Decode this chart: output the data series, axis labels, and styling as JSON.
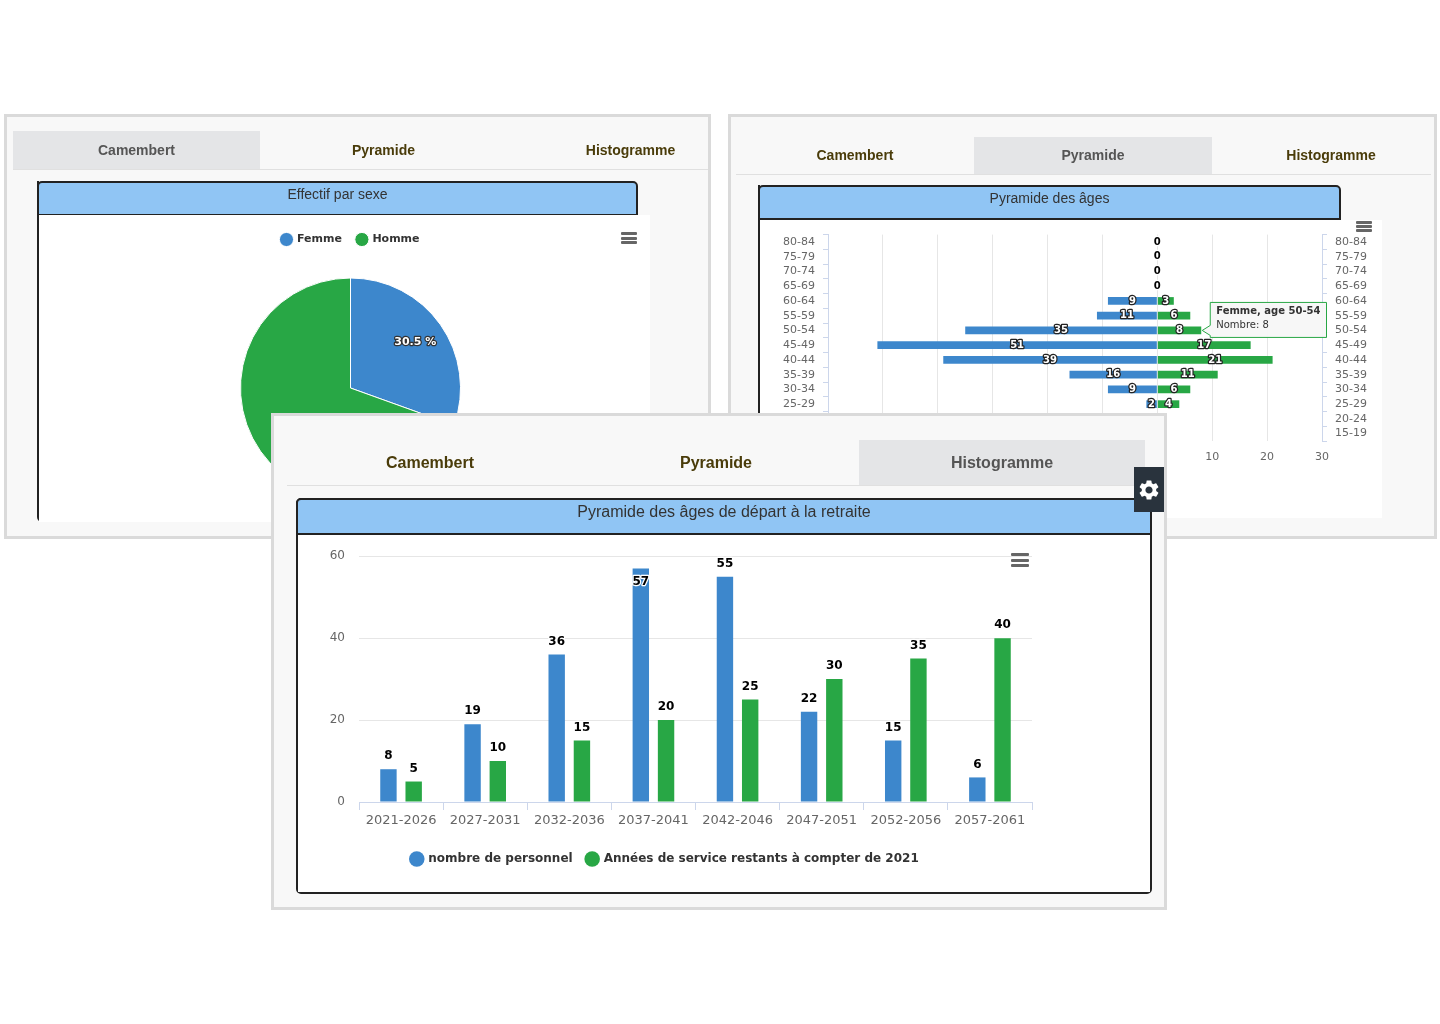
{
  "chart_data": [
    {
      "type": "pie",
      "title": "Effectif par sexe",
      "categories": [
        "Femme",
        "Homme"
      ],
      "values": [
        30.5,
        69.5
      ],
      "colors": [
        "#3d87cc",
        "#28a745"
      ],
      "value_labels": [
        "30.5 %",
        null
      ],
      "legend": "top",
      "annotations": [
        "Camembert",
        "Pyramide",
        "Histogramme"
      ]
    },
    {
      "type": "bar",
      "orientation": "horizontal",
      "title": "Pyramide des âges",
      "categories": [
        "80-84",
        "75-79",
        "70-74",
        "65-69",
        "60-64",
        "55-59",
        "50-54",
        "45-49",
        "40-44",
        "35-39",
        "30-34",
        "25-29",
        null,
        null
      ],
      "y2_categories": [
        "80-84",
        "75-79",
        "70-74",
        "65-69",
        "60-64",
        "55-59",
        "50-54",
        "45-49",
        "40-44",
        "35-39",
        "30-34",
        "25-29",
        "20-24",
        "15-19"
      ],
      "series": [
        {
          "color": "#3d87cc",
          "values": [
            0,
            0,
            0,
            0,
            9,
            11,
            35,
            51,
            39,
            16,
            9,
            2,
            null,
            null
          ],
          "base": [
            null,
            null,
            null,
            null,
            -9,
            -11,
            -35,
            -51,
            -39,
            -16,
            -9,
            -2,
            null,
            null
          ],
          "value_labels": [
            "0",
            "0",
            "0",
            "0",
            "9",
            "11",
            "35",
            "51",
            "39",
            "16",
            "9",
            "2",
            null,
            null
          ]
        },
        {
          "color": "#28a745",
          "values": [
            0,
            0,
            0,
            0,
            3,
            6,
            8,
            17,
            21,
            11,
            6,
            4,
            null,
            null
          ],
          "value_labels": [
            null,
            null,
            null,
            null,
            "3",
            "6",
            "8",
            "17",
            "21",
            "11",
            "6",
            "4",
            null,
            null
          ]
        }
      ],
      "xlim": [
        -60,
        30
      ],
      "xticks": [
        {
          "value": -60,
          "label": null
        },
        {
          "value": -50,
          "label": null
        },
        {
          "value": -40,
          "label": null
        },
        {
          "value": -30,
          "label": null
        },
        {
          "value": -20,
          "label": null
        },
        {
          "value": -10,
          "label": null
        },
        {
          "value": 0,
          "label": null
        },
        10,
        20,
        30
      ],
      "grid": "x",
      "annotations": [
        "Camembert",
        "Pyramide",
        "Histogramme",
        {
          "text": "Femme, age 50-54\nNombre: 8",
          "x": 8,
          "y": "50-54"
        }
      ]
    },
    {
      "type": "bar",
      "title": "Pyramide des âges de départ à la retraite",
      "categories": [
        "2021-2026",
        "2027-2031",
        "2032-2036",
        "2037-2041",
        "2042-2046",
        "2047-2051",
        "2052-2056",
        "2057-2061"
      ],
      "series": [
        {
          "name": "nombre de personnel",
          "color": "#3d87cc",
          "values": [
            8,
            19,
            36,
            57,
            55,
            22,
            15,
            6
          ]
        },
        {
          "name": "Années de service restants à compter de 2021",
          "color": "#28a745",
          "values": [
            5,
            10,
            15,
            20,
            25,
            30,
            35,
            40
          ]
        }
      ],
      "ylim": [
        0,
        60
      ],
      "yticks": [
        0,
        20,
        40,
        60
      ],
      "grid": "y",
      "legend": "bottom",
      "data_labels": true,
      "annotations": [
        "Camembert",
        "Pyramide",
        "Histogramme"
      ]
    }
  ]
}
